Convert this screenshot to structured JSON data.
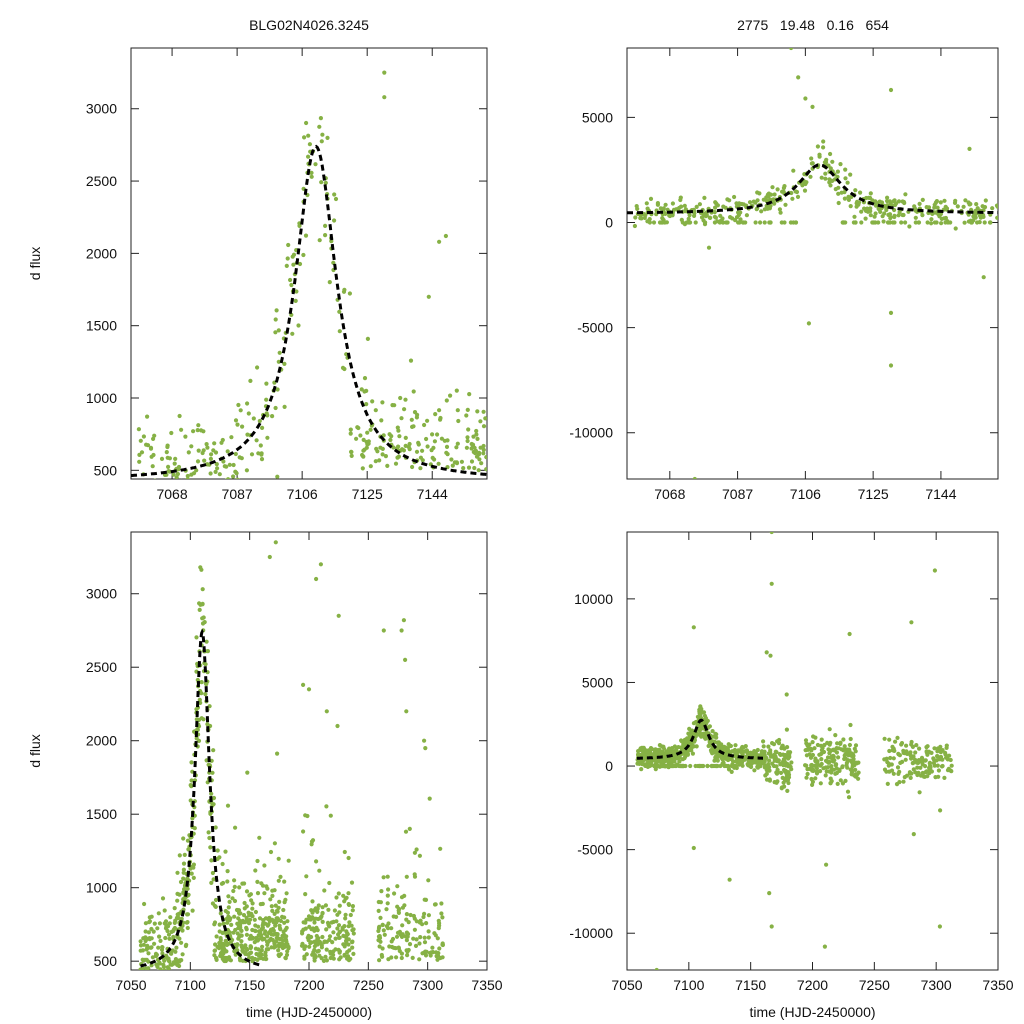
{
  "header": {
    "title": "BLG02N4026.3245",
    "stats": "2775   19.48   0.16   654"
  },
  "colors": {
    "points": "#86b145",
    "model": "#000000",
    "axis": "#222222"
  },
  "chart_data": [
    {
      "type": "scatter",
      "panel": "top-left",
      "title": "BLG02N4026.3245",
      "ylabel": "d flux",
      "xlabel": "",
      "xlim": [
        7056,
        7160
      ],
      "ylim": [
        440,
        3420
      ],
      "xticks": [
        7068,
        7087,
        7106,
        7125,
        7144
      ],
      "yticks": [
        500,
        1000,
        1500,
        2000,
        2500,
        3000
      ],
      "series": [
        {
          "name": "observations",
          "kind": "points",
          "note": "flux points, densest near peak ~7108-7114"
        },
        {
          "name": "model",
          "kind": "dashed-line",
          "peak_time": 7110,
          "peak_flux": 2740,
          "baseline": 420,
          "width": 7.5
        }
      ],
      "outliers": [
        [
          7130,
          3250
        ],
        [
          7130,
          3080
        ],
        [
          7148,
          2120
        ],
        [
          7146,
          2080
        ],
        [
          7143,
          1700
        ]
      ]
    },
    {
      "type": "scatter",
      "panel": "top-right",
      "title": "2775   19.48   0.16   654",
      "ylabel": "",
      "xlabel": "",
      "xlim": [
        7056,
        7160
      ],
      "ylim": [
        -12200,
        8300
      ],
      "xticks": [
        7068,
        7087,
        7106,
        7125,
        7144
      ],
      "yticks": [
        5000,
        0,
        -5000,
        -10000
      ],
      "series": [
        {
          "name": "observations",
          "kind": "points"
        },
        {
          "name": "zero-flux points",
          "kind": "points",
          "value": 0
        },
        {
          "name": "model",
          "kind": "dashed-line",
          "peak_time": 7110,
          "peak_flux": 2740,
          "baseline": 420,
          "width": 7.5
        }
      ],
      "outliers": [
        [
          7102,
          8300
        ],
        [
          7104,
          6900
        ],
        [
          7106,
          5900
        ],
        [
          7108,
          5500
        ],
        [
          7130,
          6300
        ],
        [
          7107,
          -4800
        ],
        [
          7130,
          -4300
        ],
        [
          7130,
          -6800
        ],
        [
          7075,
          -12200
        ],
        [
          7152,
          3500
        ],
        [
          7156,
          -2600
        ],
        [
          7079,
          -1200
        ]
      ]
    },
    {
      "type": "scatter",
      "panel": "bottom-left",
      "title": "",
      "ylabel": "d flux",
      "xlabel": "time (HJD-2450000)",
      "xlim": [
        7050,
        7350
      ],
      "ylim": [
        440,
        3420
      ],
      "xticks": [
        7050,
        7100,
        7150,
        7200,
        7250,
        7300,
        7350
      ],
      "yticks": [
        500,
        1000,
        1500,
        2000,
        2500,
        3000
      ],
      "series": [
        {
          "name": "observations",
          "kind": "points",
          "note": "season gaps near 7185-7195, 7240-7255"
        },
        {
          "name": "model",
          "kind": "dashed-line",
          "peak_time": 7110,
          "peak_flux": 2740,
          "baseline": 420,
          "width": 7.5,
          "x_range": [
            7058,
            7160
          ]
        }
      ],
      "outliers": [
        [
          7172,
          3350
        ],
        [
          7167,
          3250
        ],
        [
          7210,
          3200
        ],
        [
          7206,
          3100
        ],
        [
          7225,
          2850
        ],
        [
          7280,
          2820
        ],
        [
          7278,
          2750
        ],
        [
          7263,
          2750
        ],
        [
          7281,
          2550
        ],
        [
          7282,
          2200
        ],
        [
          7297,
          2000
        ],
        [
          7298,
          1950
        ],
        [
          7195,
          2380
        ],
        [
          7200,
          2350
        ],
        [
          7215,
          2200
        ],
        [
          7224,
          2100
        ]
      ]
    },
    {
      "type": "scatter",
      "panel": "bottom-right",
      "title": "",
      "ylabel": "",
      "xlabel": "time (HJD-2450000)",
      "xlim": [
        7050,
        7350
      ],
      "ylim": [
        -12200,
        14000
      ],
      "xticks": [
        7050,
        7100,
        7150,
        7200,
        7250,
        7300,
        7350
      ],
      "yticks": [
        10000,
        5000,
        0,
        -5000,
        -10000
      ],
      "series": [
        {
          "name": "observations",
          "kind": "points"
        },
        {
          "name": "zero-flux points",
          "kind": "points",
          "value": 0
        },
        {
          "name": "model",
          "kind": "dashed-line",
          "peak_time": 7110,
          "peak_flux": 2740,
          "baseline": 420,
          "width": 7.5,
          "x_range": [
            7058,
            7160
          ]
        }
      ],
      "outliers": [
        [
          7167,
          14000
        ],
        [
          7167,
          10900
        ],
        [
          7299,
          11700
        ],
        [
          7104,
          8300
        ],
        [
          7230,
          7900
        ],
        [
          7280,
          8600
        ],
        [
          7163,
          6800
        ],
        [
          7166,
          6600
        ],
        [
          7211,
          -5900
        ],
        [
          7210,
          -10800
        ],
        [
          7167,
          -9600
        ],
        [
          7303,
          -9600
        ],
        [
          7074,
          -12200
        ],
        [
          7133,
          -6800
        ],
        [
          7165,
          -7600
        ],
        [
          7104,
          -4900
        ]
      ]
    }
  ]
}
